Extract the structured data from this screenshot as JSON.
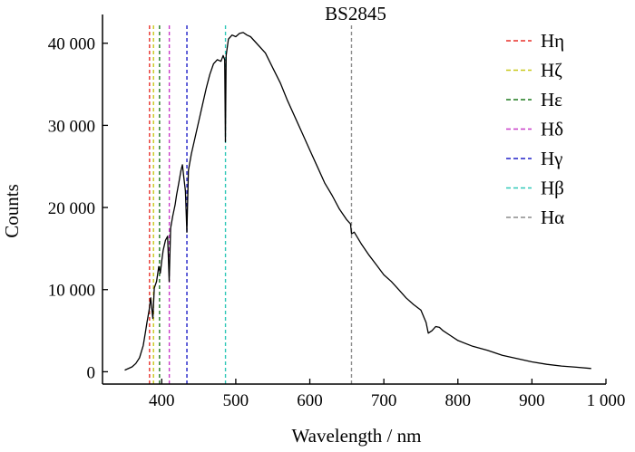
{
  "chart_data": {
    "type": "line",
    "title": "BS2845",
    "xlabel": "Wavelength / nm",
    "ylabel": "Counts",
    "xlim": [
      320,
      1000
    ],
    "ylim": [
      -1500,
      43500
    ],
    "x_ticks": [
      400,
      500,
      600,
      700,
      800,
      900,
      1000
    ],
    "x_tick_labels": [
      "400",
      "500",
      "600",
      "700",
      "800",
      "900",
      "1 000"
    ],
    "y_ticks": [
      0,
      10000,
      20000,
      30000,
      40000
    ],
    "y_tick_labels": [
      "0",
      "10 000",
      "20 000",
      "30 000",
      "40 000"
    ],
    "grid": false,
    "legend_position": "top-right",
    "series": [
      {
        "color": "#000000",
        "x": [
          350,
          360,
          365,
          370,
          375,
          378,
          380,
          383,
          385,
          388,
          390,
          393,
          396,
          398,
          400,
          402,
          405,
          408,
          410,
          412,
          415,
          418,
          420,
          423,
          426,
          428,
          430,
          432,
          434,
          436,
          440,
          445,
          450,
          455,
          460,
          465,
          470,
          475,
          480,
          483,
          485,
          486,
          487,
          490,
          495,
          500,
          505,
          510,
          515,
          520,
          530,
          540,
          550,
          560,
          570,
          580,
          590,
          600,
          610,
          620,
          630,
          640,
          650,
          655,
          656.3,
          660,
          670,
          680,
          690,
          700,
          710,
          720,
          730,
          740,
          750,
          757,
          760,
          765,
          770,
          775,
          780,
          790,
          800,
          820,
          840,
          860,
          880,
          900,
          920,
          940,
          960,
          980
        ],
        "values": [
          200,
          600,
          1000,
          1700,
          3200,
          4800,
          6000,
          7500,
          9000,
          6500,
          10200,
          11000,
          12800,
          12000,
          13500,
          14800,
          16000,
          16500,
          11000,
          17500,
          19000,
          20300,
          21500,
          23000,
          24500,
          25200,
          23500,
          22000,
          17000,
          24500,
          26500,
          28500,
          30500,
          32500,
          34500,
          36200,
          37500,
          38000,
          37800,
          38500,
          38000,
          28000,
          38500,
          40500,
          41000,
          40800,
          41200,
          41300,
          41000,
          40800,
          39800,
          38800,
          37000,
          35200,
          33000,
          31000,
          29000,
          27000,
          25000,
          23000,
          21500,
          19800,
          18500,
          18000,
          16800,
          17000,
          15500,
          14200,
          13000,
          11800,
          11000,
          10000,
          9000,
          8200,
          7500,
          6000,
          4700,
          5000,
          5500,
          5400,
          5000,
          4400,
          3800,
          3100,
          2600,
          2000,
          1600,
          1200,
          900,
          700,
          550,
          400
        ]
      }
    ],
    "markers": [
      {
        "label": "Hη",
        "x": 383.5,
        "color": "#e8302a"
      },
      {
        "label": "Hζ",
        "x": 388.9,
        "color": "#c8c81a"
      },
      {
        "label": "Hε",
        "x": 397.0,
        "color": "#1f7a1f"
      },
      {
        "label": "Hδ",
        "x": 410.2,
        "color": "#c83cc8"
      },
      {
        "label": "Hγ",
        "x": 434.0,
        "color": "#2020c8"
      },
      {
        "label": "Hβ",
        "x": 486.1,
        "color": "#30c8b8"
      },
      {
        "label": "Hα",
        "x": 656.3,
        "color": "#8c8c8c"
      }
    ]
  }
}
